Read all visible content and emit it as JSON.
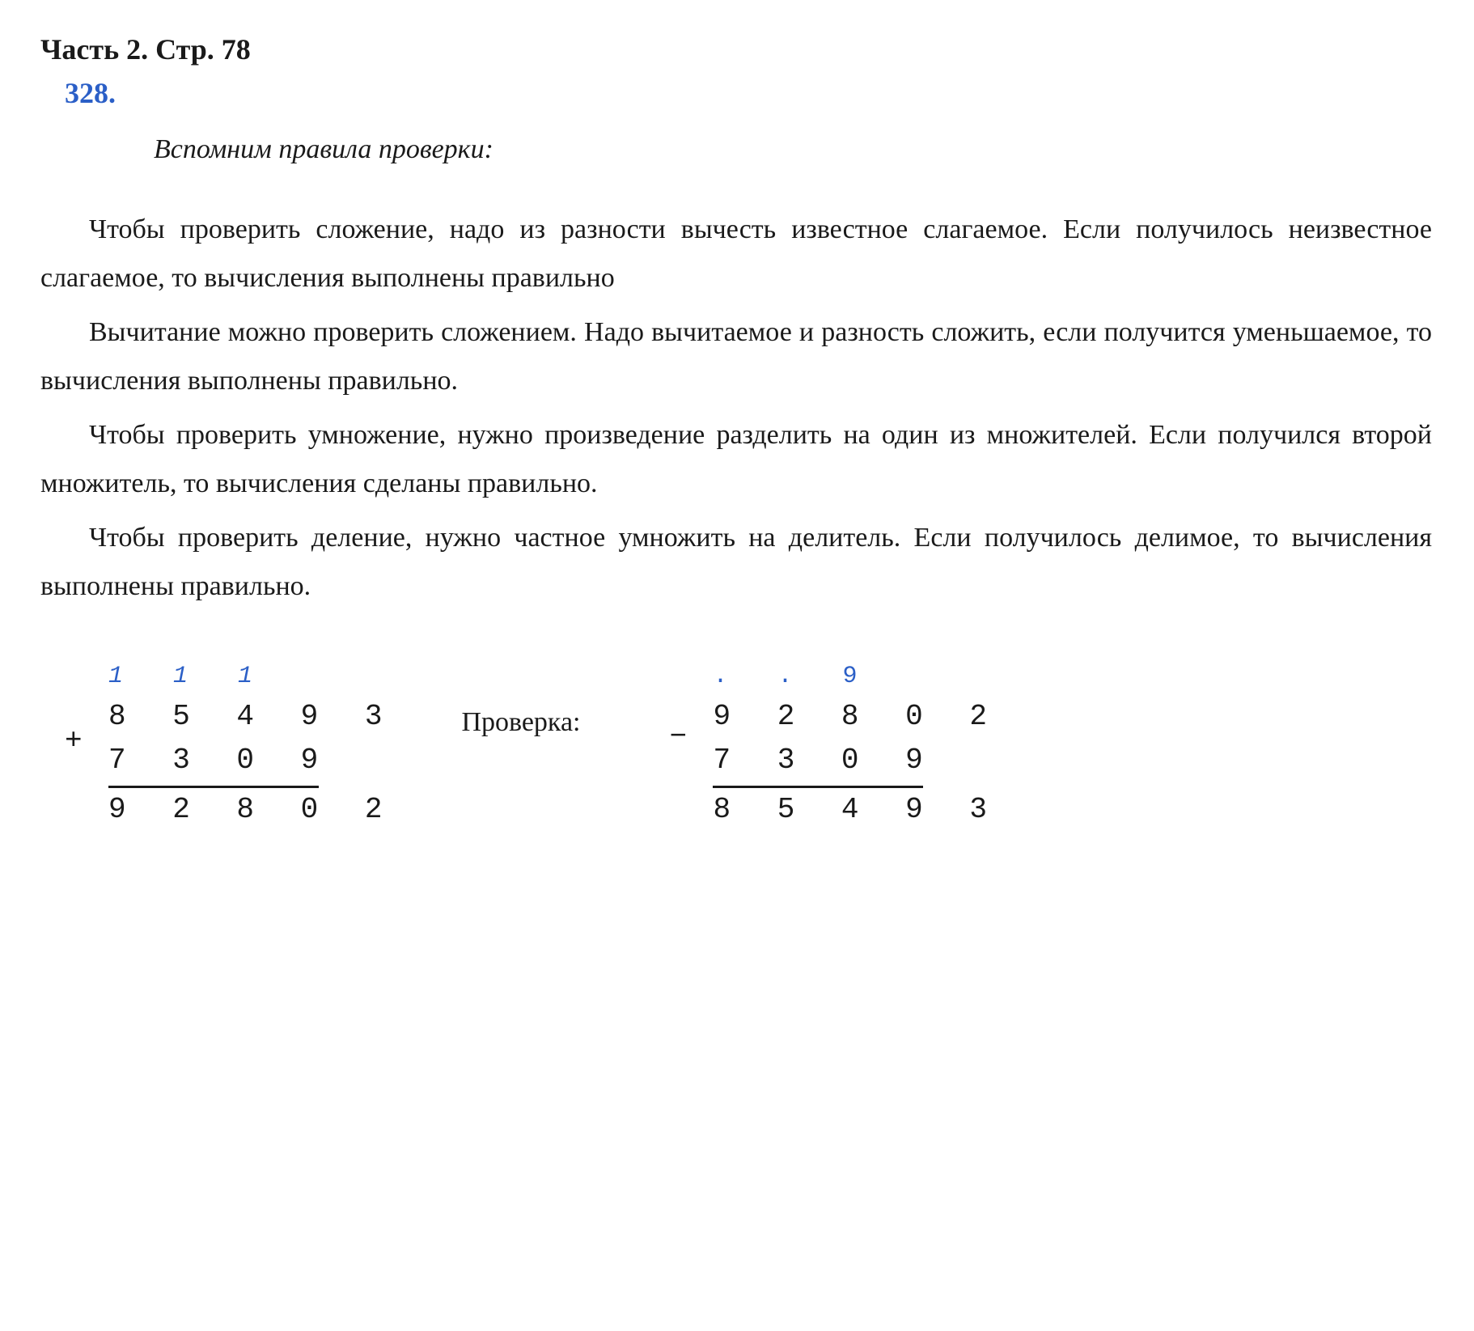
{
  "header": {
    "part_page": "Часть 2. Стр. 78",
    "problem_number": "328."
  },
  "subtitle": "Вспомним правила проверки:",
  "paragraphs": {
    "p1": "Чтобы проверить сложение, надо из разности вычесть известное слагаемое. Если получилось неизвестное слагаемое, то вычисления выполнены правильно",
    "p2": "Вычитание можно проверить сложением. Надо вычитаемое и разность сложить, если получится уменьшаемое, то вычисления выполнены правильно.",
    "p3": "Чтобы проверить умножение, нужно произведение разделить на один из множителей. Если получился второй множитель, то вычисления сделаны правильно.",
    "p4": "Чтобы проверить деление, нужно частное умножить на делитель. Если получилось делимое, то вычисления выполнены правильно."
  },
  "calculation": {
    "addition": {
      "carry": "1  1 1",
      "operand1": "8 5 4 9 3",
      "operand2": "  7 3 0 9",
      "result": "9 2 8 0 2",
      "operator": "+"
    },
    "check_label": "Проверка:",
    "subtraction": {
      "carry": ".   .  9",
      "operand1": "9 2 8 0 2",
      "operand2": "  7 3 0 9",
      "result": "8 5 4 9 3",
      "operator": "−"
    }
  },
  "colors": {
    "text": "#1a1a1a",
    "accent": "#2b5fc7",
    "background": "#ffffff"
  },
  "typography": {
    "body_fontsize": 34,
    "header_fontsize": 36,
    "calc_fontsize": 36
  }
}
